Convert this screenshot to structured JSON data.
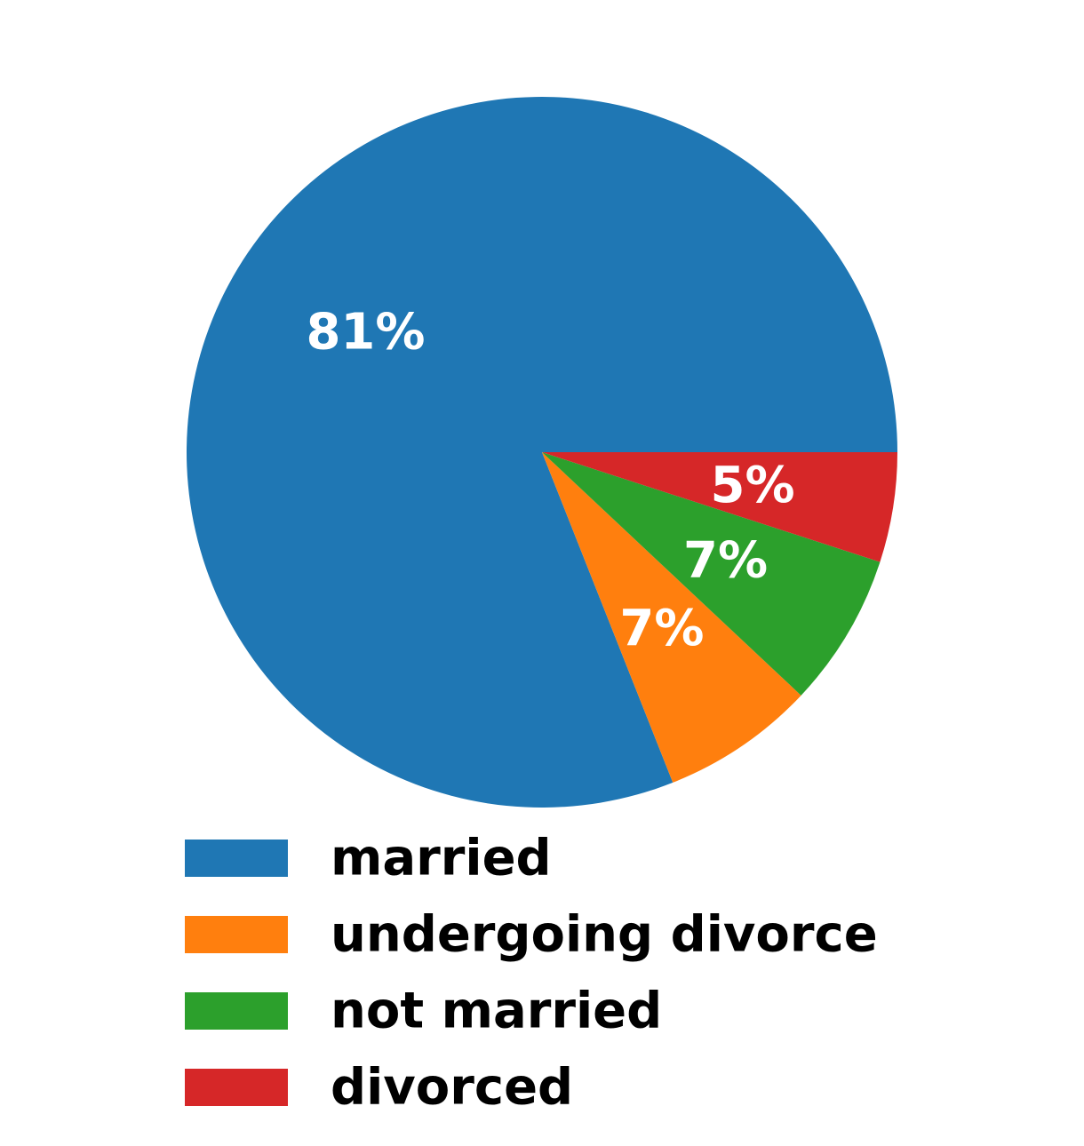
{
  "chart_data": {
    "type": "pie",
    "title": "",
    "start_angle_deg": 0,
    "direction": "clockwise",
    "legend_position": "bottom",
    "slices": [
      {
        "label": "married",
        "value": 81,
        "display": "81%",
        "color": "#1f77b4"
      },
      {
        "label": "undergoing divorce",
        "value": 7,
        "display": "7%",
        "color": "#ff7f0e"
      },
      {
        "label": "not married",
        "value": 7,
        "display": "7%",
        "color": "#2ca02c"
      },
      {
        "label": "divorced",
        "value": 5,
        "display": "5%",
        "color": "#d62728"
      }
    ]
  }
}
